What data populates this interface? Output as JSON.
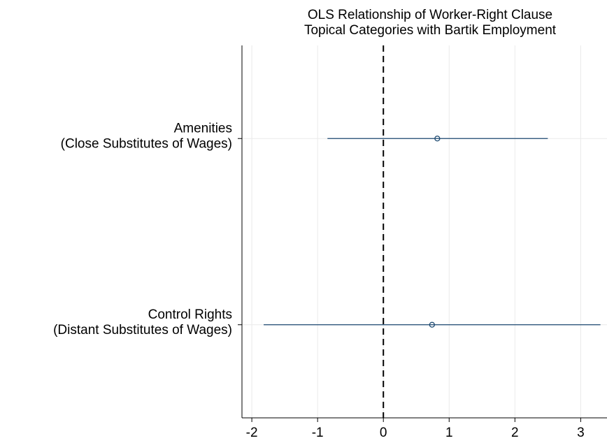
{
  "chart_data": {
    "type": "coefplot",
    "title": [
      "OLS Relationship of Worker-Right Clause",
      "Topical Categories with Bartik Employment"
    ],
    "categories": [
      [
        "Amenities",
        "(Close Substitutes of Wages)"
      ],
      [
        "Control Rights",
        "(Distant Substitutes of Wages)"
      ]
    ],
    "series": [
      {
        "color": "#1a476f",
        "values": [
          0.82,
          0.74
        ],
        "ci_low": [
          -0.85,
          -1.82
        ],
        "ci_high": [
          2.5,
          3.3
        ]
      }
    ],
    "xlim": [
      -2.15,
      3.4
    ],
    "xticks": [
      -2,
      -1,
      0,
      1,
      2,
      3
    ],
    "xline": 0,
    "grid": true
  }
}
